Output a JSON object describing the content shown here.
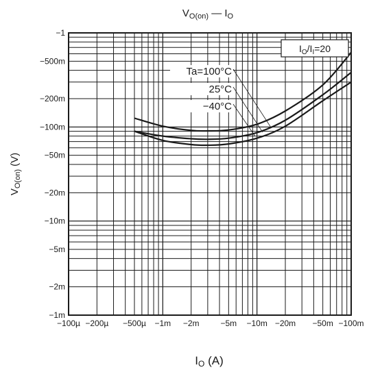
{
  "chart_data": {
    "type": "line",
    "title_main": "V",
    "title_sub": "O(on)",
    "title_rest": " — I",
    "title_sub2": "O",
    "xlabel_main": "I",
    "xlabel_sub": "O",
    "xlabel_rest": " (A)",
    "ylabel_main": "V",
    "ylabel_sub": "O(on)",
    "ylabel_rest": " (V)",
    "x_scale": "log",
    "y_scale": "log",
    "x_axis_reversed_sign": true,
    "y_axis_reversed_sign": true,
    "xlim": [
      -0.0001,
      -0.1
    ],
    "ylim": [
      -0.001,
      -1
    ],
    "grid": true,
    "x_ticks": [
      {
        "value": -0.0001,
        "label": "−100µ"
      },
      {
        "value": -0.0002,
        "label": "−200µ"
      },
      {
        "value": -0.0005,
        "label": "−500µ"
      },
      {
        "value": -0.001,
        "label": "−1m"
      },
      {
        "value": -0.002,
        "label": "−2m"
      },
      {
        "value": -0.005,
        "label": "−5m"
      },
      {
        "value": -0.01,
        "label": "−10m"
      },
      {
        "value": -0.02,
        "label": "−20m"
      },
      {
        "value": -0.05,
        "label": "−50m"
      },
      {
        "value": -0.1,
        "label": "−100m"
      }
    ],
    "y_ticks": [
      {
        "value": -1,
        "label": "−1"
      },
      {
        "value": -0.5,
        "label": "−500m"
      },
      {
        "value": -0.2,
        "label": "−200m"
      },
      {
        "value": -0.1,
        "label": "−100m"
      },
      {
        "value": -0.05,
        "label": "−50m"
      },
      {
        "value": -0.02,
        "label": "−20m"
      },
      {
        "value": -0.01,
        "label": "−10m"
      },
      {
        "value": -0.005,
        "label": "−5m"
      },
      {
        "value": -0.002,
        "label": "−2m"
      },
      {
        "value": -0.001,
        "label": "−1m"
      }
    ],
    "condition_label": "I",
    "condition_sub1": "O",
    "condition_mid": "/I",
    "condition_sub2": "I",
    "condition_rest": "=20",
    "series": [
      {
        "name": "Ta=100°C",
        "x": [
          -0.0005,
          -0.001,
          -0.002,
          -0.003,
          -0.005,
          -0.01,
          -0.02,
          -0.05,
          -0.1
        ],
        "y": [
          -0.124,
          -0.102,
          -0.092,
          -0.091,
          -0.093,
          -0.107,
          -0.148,
          -0.28,
          -0.62
        ]
      },
      {
        "name": "25°C",
        "x": [
          -0.0005,
          -0.001,
          -0.002,
          -0.003,
          -0.005,
          -0.01,
          -0.02,
          -0.05,
          -0.1
        ],
        "y": [
          -0.09,
          -0.08,
          -0.075,
          -0.074,
          -0.076,
          -0.087,
          -0.118,
          -0.22,
          -0.38
        ]
      },
      {
        "name": "−40°C",
        "x": [
          -0.0005,
          -0.001,
          -0.002,
          -0.003,
          -0.005,
          -0.01,
          -0.02,
          -0.05,
          -0.1
        ],
        "y": [
          -0.09,
          -0.072,
          -0.065,
          -0.064,
          -0.066,
          -0.076,
          -0.102,
          -0.19,
          -0.3
        ]
      }
    ]
  }
}
